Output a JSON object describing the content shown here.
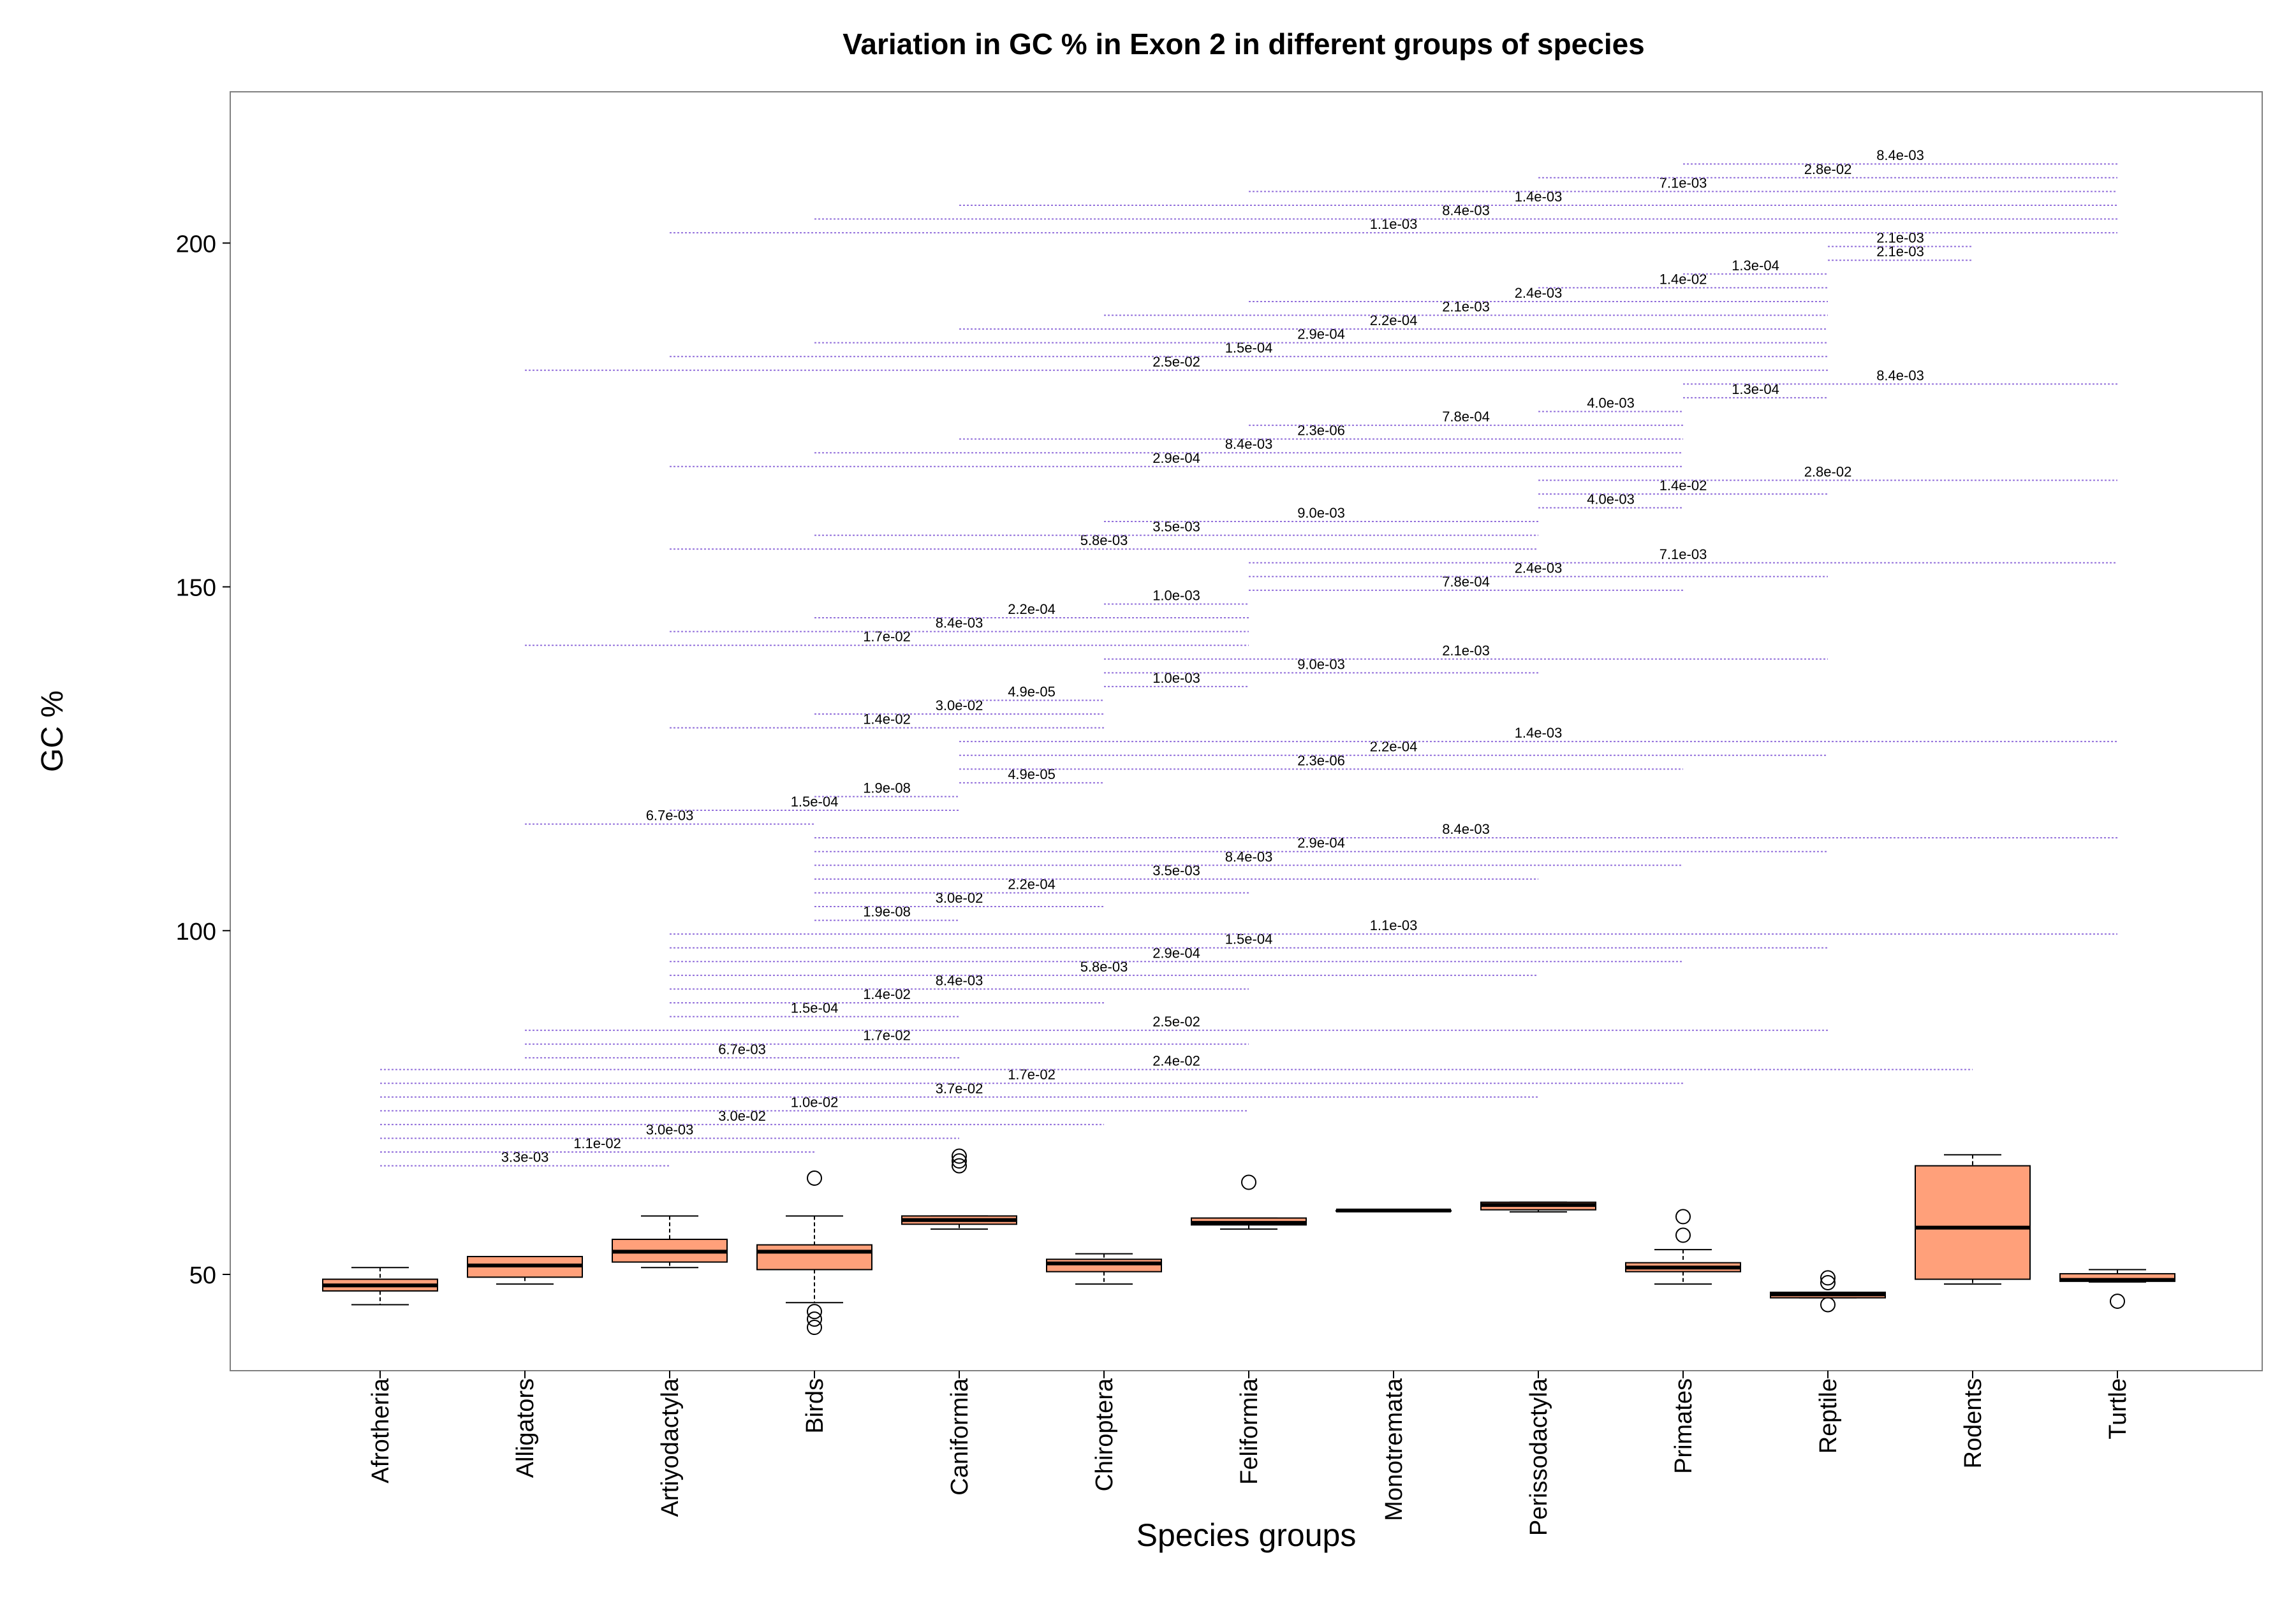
{
  "chart_data": {
    "type": "box",
    "title": "Variation in GC % in Exon 2 in different groups of species",
    "xlabel": "Species groups",
    "ylabel": "GC %",
    "ylim": [
      36,
      222
    ],
    "yticks": [
      50,
      100,
      150,
      200
    ],
    "categories": [
      "Afrotheria",
      "Alligators",
      "Artiyodactyla",
      "Birds",
      "Caniformia",
      "Chiroptera",
      "Feliformia",
      "Monotremata",
      "Perissodactyla",
      "Primates",
      "Reptile",
      "Rodents",
      "Turtle"
    ],
    "boxes": [
      {
        "whislo": 45.6,
        "q1": 47.6,
        "med": 48.4,
        "q3": 49.3,
        "whishi": 51.0,
        "fliers": []
      },
      {
        "whislo": 48.6,
        "q1": 49.6,
        "med": 51.3,
        "q3": 52.6,
        "whishi": 52.6,
        "fliers": []
      },
      {
        "whislo": 51.0,
        "q1": 51.8,
        "med": 53.3,
        "q3": 55.1,
        "whishi": 58.5,
        "fliers": []
      },
      {
        "whislo": 45.9,
        "q1": 50.7,
        "med": 53.3,
        "q3": 54.3,
        "whishi": 58.5,
        "fliers": [
          64.0,
          44.6,
          43.5,
          42.3
        ]
      },
      {
        "whislo": 56.6,
        "q1": 57.3,
        "med": 57.9,
        "q3": 58.5,
        "whishi": 58.5,
        "fliers": [
          67.2,
          66.5,
          65.8
        ]
      },
      {
        "whislo": 48.6,
        "q1": 50.4,
        "med": 51.6,
        "q3": 52.2,
        "whishi": 53.0,
        "fliers": []
      },
      {
        "whislo": 56.6,
        "q1": 57.2,
        "med": 57.5,
        "q3": 58.2,
        "whishi": 58.2,
        "fliers": [
          63.4
        ]
      },
      {
        "whislo": 59.3,
        "q1": 59.3,
        "med": 59.3,
        "q3": 59.3,
        "whishi": 59.3,
        "fliers": []
      },
      {
        "whislo": 59.1,
        "q1": 59.4,
        "med": 60.1,
        "q3": 60.5,
        "whishi": 60.5,
        "fliers": []
      },
      {
        "whislo": 48.6,
        "q1": 50.4,
        "med": 51.0,
        "q3": 51.7,
        "whishi": 53.6,
        "fliers": [
          58.4,
          55.7
        ]
      },
      {
        "whislo": 46.6,
        "q1": 46.6,
        "med": 47.1,
        "q3": 47.4,
        "whishi": 47.4,
        "fliers": [
          49.5,
          48.8,
          45.6
        ]
      },
      {
        "whislo": 48.6,
        "q1": 49.3,
        "med": 56.8,
        "q3": 65.8,
        "whishi": 67.4,
        "fliers": []
      },
      {
        "whislo": 48.9,
        "q1": 49.0,
        "med": 49.2,
        "q3": 50.1,
        "whishi": 50.7,
        "fliers": [
          46.1
        ]
      }
    ],
    "comparisons": [
      {
        "from": 0,
        "to": 2,
        "y": 65.8,
        "label": "3.3e-03"
      },
      {
        "from": 0,
        "to": 3,
        "y": 67.8,
        "label": "1.1e-02"
      },
      {
        "from": 0,
        "to": 4,
        "y": 69.8,
        "label": "3.0e-03"
      },
      {
        "from": 0,
        "to": 5,
        "y": 71.8,
        "label": "3.0e-02"
      },
      {
        "from": 0,
        "to": 6,
        "y": 73.8,
        "label": "1.0e-02"
      },
      {
        "from": 0,
        "to": 8,
        "y": 75.8,
        "label": "3.7e-02"
      },
      {
        "from": 0,
        "to": 9,
        "y": 77.8,
        "label": "1.7e-02"
      },
      {
        "from": 0,
        "to": 11,
        "y": 79.8,
        "label": "2.4e-02"
      },
      {
        "from": 1,
        "to": 4,
        "y": 81.5,
        "label": "6.7e-03"
      },
      {
        "from": 1,
        "to": 6,
        "y": 83.5,
        "label": "1.7e-02"
      },
      {
        "from": 1,
        "to": 10,
        "y": 85.5,
        "label": "2.5e-02"
      },
      {
        "from": 2,
        "to": 4,
        "y": 87.5,
        "label": "1.5e-04"
      },
      {
        "from": 2,
        "to": 5,
        "y": 89.5,
        "label": "1.4e-02"
      },
      {
        "from": 2,
        "to": 6,
        "y": 91.5,
        "label": "8.4e-03"
      },
      {
        "from": 2,
        "to": 8,
        "y": 93.5,
        "label": "5.8e-03"
      },
      {
        "from": 2,
        "to": 9,
        "y": 95.5,
        "label": "2.9e-04"
      },
      {
        "from": 2,
        "to": 10,
        "y": 97.5,
        "label": "1.5e-04"
      },
      {
        "from": 2,
        "to": 12,
        "y": 99.5,
        "label": "1.1e-03"
      },
      {
        "from": 3,
        "to": 4,
        "y": 101.5,
        "label": "1.9e-08"
      },
      {
        "from": 3,
        "to": 5,
        "y": 103.5,
        "label": "3.0e-02"
      },
      {
        "from": 3,
        "to": 6,
        "y": 105.5,
        "label": "2.2e-04"
      },
      {
        "from": 3,
        "to": 8,
        "y": 107.5,
        "label": "3.5e-03"
      },
      {
        "from": 3,
        "to": 9,
        "y": 109.5,
        "label": "8.4e-03"
      },
      {
        "from": 3,
        "to": 10,
        "y": 111.5,
        "label": "2.9e-04"
      },
      {
        "from": 3,
        "to": 12,
        "y": 113.5,
        "label": "8.4e-03"
      },
      {
        "from": 1,
        "to": 3,
        "y": 115.5,
        "label": "6.7e-03"
      },
      {
        "from": 2,
        "to": 4,
        "y": 117.5,
        "label": "1.5e-04"
      },
      {
        "from": 3,
        "to": 4,
        "y": 119.5,
        "label": "1.9e-08"
      },
      {
        "from": 4,
        "to": 5,
        "y": 121.5,
        "label": "4.9e-05"
      },
      {
        "from": 4,
        "to": 9,
        "y": 123.5,
        "label": "2.3e-06"
      },
      {
        "from": 4,
        "to": 10,
        "y": 125.5,
        "label": "2.2e-04"
      },
      {
        "from": 4,
        "to": 12,
        "y": 127.5,
        "label": "1.4e-03"
      },
      {
        "from": 2,
        "to": 5,
        "y": 129.5,
        "label": "1.4e-02"
      },
      {
        "from": 3,
        "to": 5,
        "y": 131.5,
        "label": "3.0e-02"
      },
      {
        "from": 4,
        "to": 5,
        "y": 133.5,
        "label": "4.9e-05"
      },
      {
        "from": 5,
        "to": 6,
        "y": 135.5,
        "label": "1.0e-03"
      },
      {
        "from": 5,
        "to": 8,
        "y": 137.5,
        "label": "9.0e-03"
      },
      {
        "from": 5,
        "to": 10,
        "y": 139.5,
        "label": "2.1e-03"
      },
      {
        "from": 1,
        "to": 6,
        "y": 141.5,
        "label": "1.7e-02"
      },
      {
        "from": 2,
        "to": 6,
        "y": 143.5,
        "label": "8.4e-03"
      },
      {
        "from": 3,
        "to": 6,
        "y": 145.5,
        "label": "2.2e-04"
      },
      {
        "from": 5,
        "to": 6,
        "y": 147.5,
        "label": "1.0e-03"
      },
      {
        "from": 6,
        "to": 9,
        "y": 149.5,
        "label": "7.8e-04"
      },
      {
        "from": 6,
        "to": 10,
        "y": 151.5,
        "label": "2.4e-03"
      },
      {
        "from": 6,
        "to": 12,
        "y": 153.5,
        "label": "7.1e-03"
      },
      {
        "from": 2,
        "to": 8,
        "y": 155.5,
        "label": "5.8e-03"
      },
      {
        "from": 3,
        "to": 8,
        "y": 157.5,
        "label": "3.5e-03"
      },
      {
        "from": 5,
        "to": 8,
        "y": 159.5,
        "label": "9.0e-03"
      },
      {
        "from": 8,
        "to": 9,
        "y": 161.5,
        "label": "4.0e-03"
      },
      {
        "from": 8,
        "to": 10,
        "y": 163.5,
        "label": "1.4e-02"
      },
      {
        "from": 8,
        "to": 12,
        "y": 165.5,
        "label": "2.8e-02"
      },
      {
        "from": 2,
        "to": 9,
        "y": 167.5,
        "label": "2.9e-04"
      },
      {
        "from": 3,
        "to": 9,
        "y": 169.5,
        "label": "8.4e-03"
      },
      {
        "from": 4,
        "to": 9,
        "y": 171.5,
        "label": "2.3e-06"
      },
      {
        "from": 6,
        "to": 9,
        "y": 173.5,
        "label": "7.8e-04"
      },
      {
        "from": 8,
        "to": 9,
        "y": 175.5,
        "label": "4.0e-03"
      },
      {
        "from": 9,
        "to": 10,
        "y": 177.5,
        "label": "1.3e-04"
      },
      {
        "from": 9,
        "to": 12,
        "y": 179.5,
        "label": "8.4e-03"
      },
      {
        "from": 1,
        "to": 10,
        "y": 181.5,
        "label": "2.5e-02"
      },
      {
        "from": 2,
        "to": 10,
        "y": 183.5,
        "label": "1.5e-04"
      },
      {
        "from": 3,
        "to": 10,
        "y": 185.5,
        "label": "2.9e-04"
      },
      {
        "from": 4,
        "to": 10,
        "y": 187.5,
        "label": "2.2e-04"
      },
      {
        "from": 5,
        "to": 10,
        "y": 189.5,
        "label": "2.1e-03"
      },
      {
        "from": 6,
        "to": 10,
        "y": 191.5,
        "label": "2.4e-03"
      },
      {
        "from": 8,
        "to": 10,
        "y": 193.5,
        "label": "1.4e-02"
      },
      {
        "from": 9,
        "to": 10,
        "y": 195.5,
        "label": "1.3e-04"
      },
      {
        "from": 10,
        "to": 11,
        "y": 197.5,
        "label": "2.1e-03"
      },
      {
        "from": 10,
        "to": 11,
        "y": 199.5,
        "label": "2.1e-03"
      },
      {
        "from": 2,
        "to": 12,
        "y": 201.5,
        "label": "1.1e-03"
      },
      {
        "from": 3,
        "to": 12,
        "y": 203.5,
        "label": "8.4e-03"
      },
      {
        "from": 4,
        "to": 12,
        "y": 205.5,
        "label": "1.4e-03"
      },
      {
        "from": 6,
        "to": 12,
        "y": 207.5,
        "label": "7.1e-03"
      },
      {
        "from": 8,
        "to": 12,
        "y": 209.5,
        "label": "2.8e-02"
      },
      {
        "from": 9,
        "to": 12,
        "y": 211.5,
        "label": "8.4e-03"
      }
    ],
    "colors": {
      "box_fill": "#FFA07A",
      "box_edge": "#000000",
      "bracket": "#9370DB",
      "frame": "#808080"
    },
    "grid": false,
    "legend": "none"
  }
}
